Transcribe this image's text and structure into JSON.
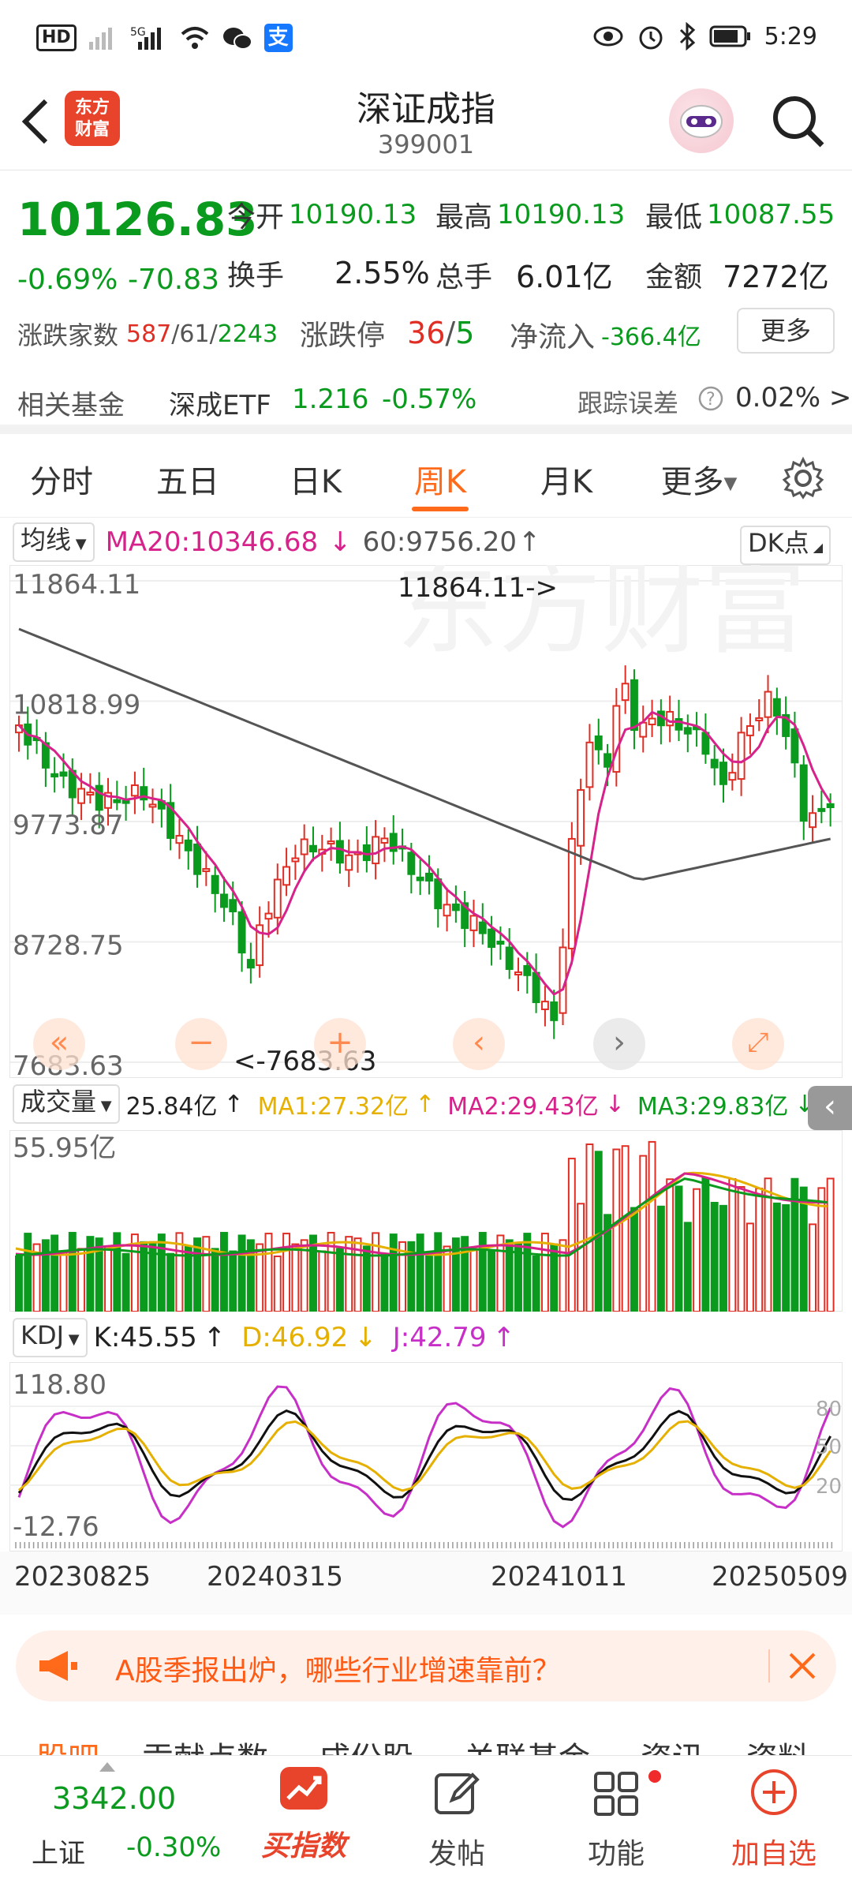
{
  "statusbar": {
    "time": "5:29",
    "left_icons": [
      "HD2",
      "5G signal",
      "wifi",
      "wechat",
      "alipay"
    ]
  },
  "header": {
    "back_icon": "back-arrow-icon",
    "logo_text": "东方财富",
    "title": "深证成指",
    "code": "399001"
  },
  "quote": {
    "price": "10126.83",
    "change_pct": "-0.69%",
    "change": "-70.83",
    "open_label": "今开",
    "open": "10190.13",
    "high_label": "最高",
    "high": "10190.13",
    "low_label": "最低",
    "low": "10087.55",
    "turnover_label": "换手",
    "turnover": "2.55%",
    "volume_label": "总手",
    "volume": "6.01亿",
    "amount_label": "金额",
    "amount": "7272亿",
    "breadth_label": "涨跌家数",
    "breadth_up": "587",
    "breadth_flat": "61",
    "breadth_down": "2243",
    "limit_label": "涨跌停",
    "limit_up": "36",
    "limit_down": "5",
    "netflow_label": "净流入",
    "netflow": "-366.4亿",
    "more_button": "更多"
  },
  "fund": {
    "label": "相关基金",
    "name": "深成ETF",
    "price": "1.216",
    "change": "-0.57%",
    "tracking_label": "跟踪误差",
    "tracking_value": "0.02% >"
  },
  "tabs": [
    "分时",
    "五日",
    "日K",
    "周K",
    "月K",
    "更多"
  ],
  "active_tab": 3,
  "kline": {
    "indicator_select": "均线",
    "ma20": "MA20:10346.68",
    "ma60": "60:9756.20",
    "dk_button": "DK点",
    "y_labels": [
      "11864.11",
      "10818.99",
      "9773.87",
      "8728.75",
      "7683.63"
    ],
    "high_marker": "11864.11->",
    "low_marker": "<-7683.63"
  },
  "volume": {
    "select": "成交量",
    "value": "25.84亿",
    "ma1": "MA1:27.32亿",
    "ma2": "MA2:29.43亿",
    "ma3": "MA3:29.83亿",
    "max_label": "55.95亿"
  },
  "kdj": {
    "select": "KDJ",
    "k": "K:45.55",
    "d": "D:46.92",
    "j": "J:42.79",
    "top": "118.80",
    "bottom": "-12.76",
    "levels": [
      "80",
      "50",
      "20"
    ]
  },
  "dates": [
    "20230825",
    "20240315",
    "20241011",
    "20250509"
  ],
  "banner": {
    "text": "A股季报出炉，哪些行业增速靠前？"
  },
  "subtabs_partial": [
    "股吧",
    "贡献点数",
    "成份股",
    "关联基金",
    "资讯",
    "资料"
  ],
  "tabbar": {
    "index_value": "3342.00",
    "index_name": "上证",
    "index_change": "-0.30%",
    "buy_label": "买指数",
    "post_label": "发帖",
    "func_label": "功能",
    "add_label": "加自选"
  },
  "colors": {
    "up": "#e02e24",
    "down": "#0a9a1e",
    "accent": "#ff6a1a",
    "ma20": "#d6228a",
    "ma60": "#555555",
    "ma1": "#f0b400"
  }
}
